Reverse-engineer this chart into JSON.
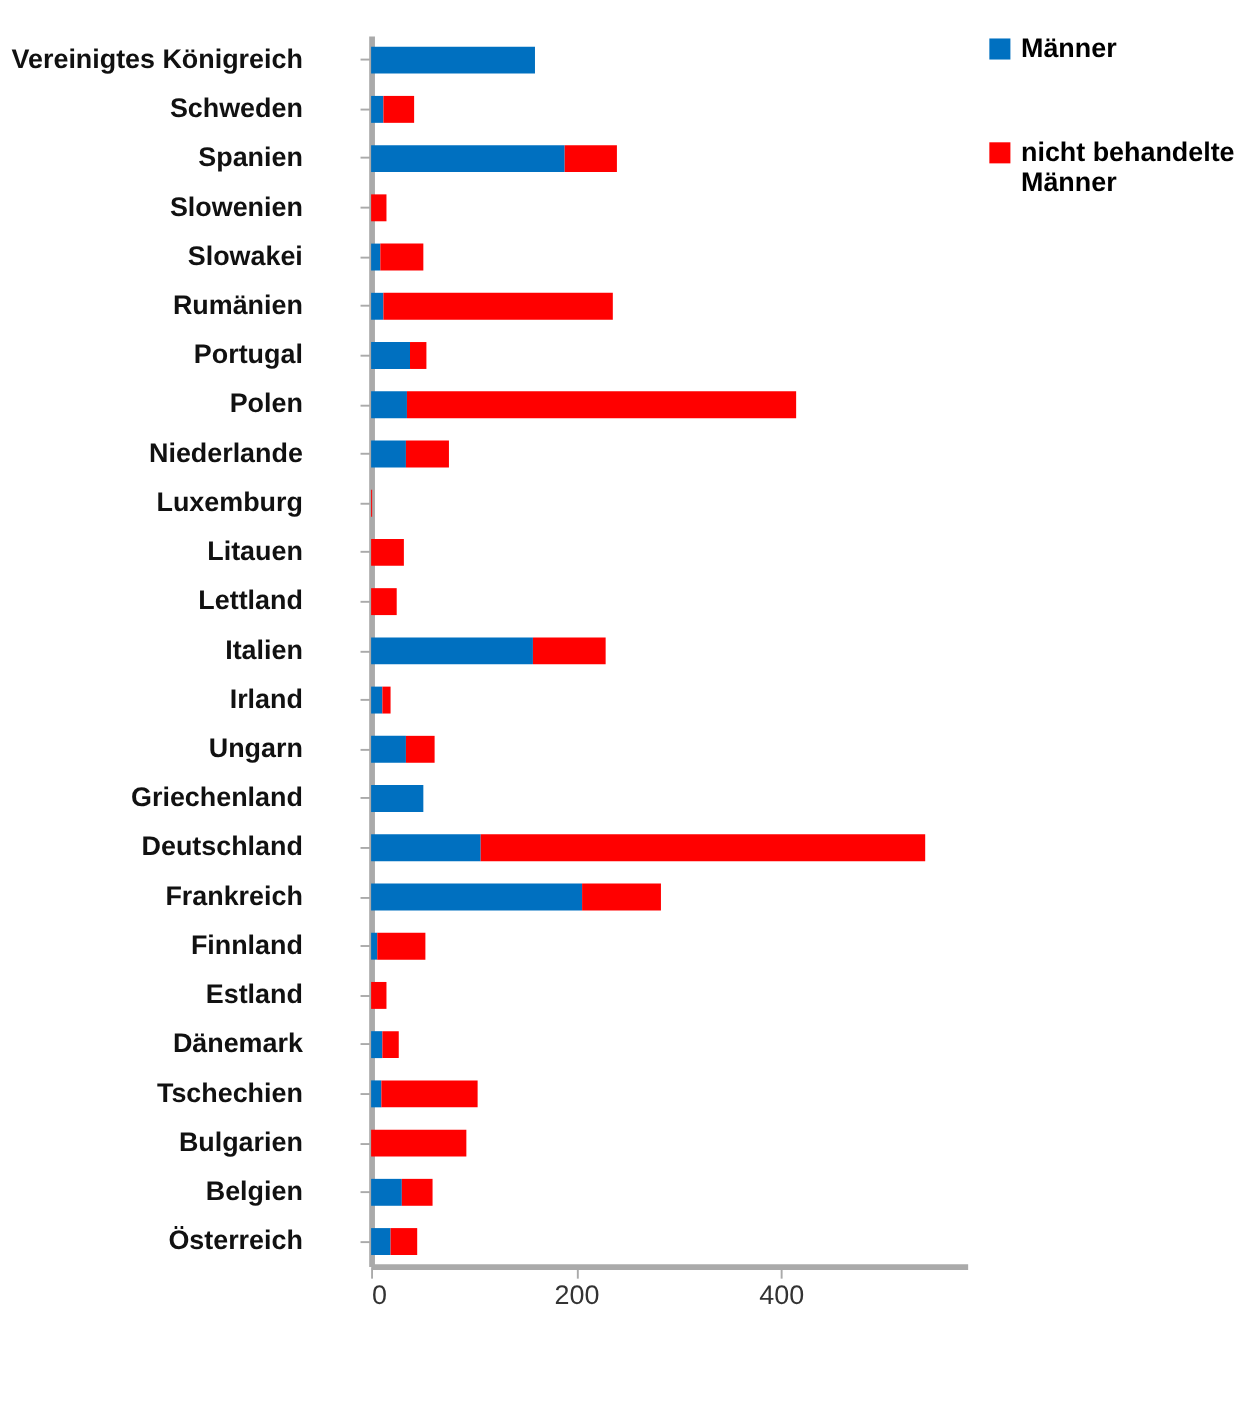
{
  "chart_data": {
    "type": "bar",
    "orientation": "horizontal",
    "stacked": true,
    "categories": [
      "Vereinigtes Königreich",
      "Schweden",
      "Spanien",
      "Slowenien",
      "Slowakei",
      "Rumänien",
      "Portugal",
      "Polen",
      "Niederlande",
      "Luxemburg",
      "Litauen",
      "Lettland",
      "Italien",
      "Irland",
      "Ungarn",
      "Griechenland",
      "Deutschland",
      "Frankreich",
      "Finnland",
      "Estland",
      "Dänemark",
      "Tschechien",
      "Bulgarien",
      "Belgien",
      "Österreich"
    ],
    "series": [
      {
        "name": "Männer",
        "color": "#0070c0",
        "values": [
          160,
          12,
          189,
          0,
          9,
          12,
          38,
          35,
          34,
          0,
          0,
          0,
          158,
          11,
          34,
          51,
          107,
          206,
          6,
          0,
          11,
          10,
          0,
          30,
          19
        ]
      },
      {
        "name": "nicht behandelte Männer",
        "color": "#ff0000",
        "values": [
          0,
          30,
          51,
          15,
          42,
          224,
          16,
          380,
          42,
          1,
          32,
          25,
          71,
          8,
          28,
          0,
          434,
          77,
          47,
          15,
          16,
          94,
          93,
          30,
          26
        ]
      }
    ],
    "xlim": [
      0,
      582
    ],
    "xticks": [
      0,
      200,
      400
    ],
    "grid": false,
    "legend": "right"
  }
}
